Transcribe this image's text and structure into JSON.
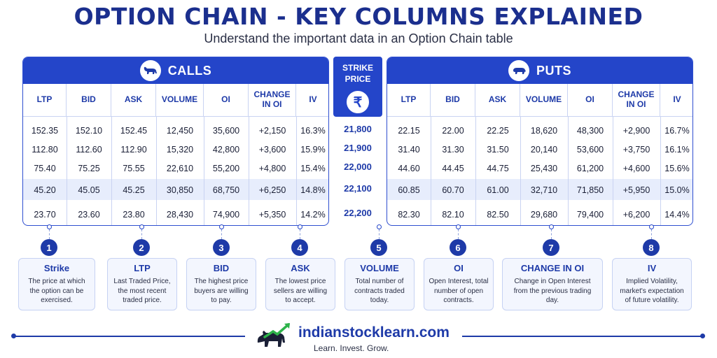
{
  "header": {
    "title": "OPTION CHAIN - KEY COLUMNS EXPLAINED",
    "subtitle": "Understand the important data in an Option Chain table"
  },
  "calls": {
    "label": "CALLS",
    "icon": "bull-icon",
    "columns": [
      "LTP",
      "BID",
      "ASK",
      "VOLUME",
      "OI",
      "CHANGE IN OI",
      "IV"
    ],
    "rows": [
      [
        "152.35",
        "152.10",
        "152.45",
        "12,450",
        "35,600",
        "+2,150",
        "16.3%"
      ],
      [
        "112.80",
        "112.60",
        "112.90",
        "15,320",
        "42,800",
        "+3,600",
        "15.9%"
      ],
      [
        "75.40",
        "75.25",
        "75.55",
        "22,610",
        "55,200",
        "+4,800",
        "15.4%"
      ],
      [
        "45.20",
        "45.05",
        "45.25",
        "30,850",
        "68,750",
        "+6,250",
        "14.8%"
      ],
      [
        "23.70",
        "23.60",
        "23.80",
        "28,430",
        "74,900",
        "+5,350",
        "14.2%"
      ]
    ]
  },
  "strike": {
    "label_line1": "STRIKE",
    "label_line2": "PRICE",
    "icon": "rupee-icon",
    "symbol": "₹",
    "values": [
      "21,800",
      "21,900",
      "22,000",
      "22,100",
      "22,200"
    ]
  },
  "puts": {
    "label": "PUTS",
    "icon": "bear-icon",
    "columns": [
      "LTP",
      "BID",
      "ASK",
      "VOLUME",
      "OI",
      "CHANGE IN OI",
      "IV"
    ],
    "rows": [
      [
        "22.15",
        "22.00",
        "22.25",
        "18,620",
        "48,300",
        "+2,900",
        "16.7%"
      ],
      [
        "31.40",
        "31.30",
        "31.50",
        "20,140",
        "53,600",
        "+3,750",
        "16.1%"
      ],
      [
        "44.60",
        "44.45",
        "44.75",
        "25,430",
        "61,200",
        "+4,600",
        "15.6%"
      ],
      [
        "60.85",
        "60.70",
        "61.00",
        "32,710",
        "71,850",
        "+5,950",
        "15.0%"
      ],
      [
        "82.30",
        "82.10",
        "82.50",
        "29,680",
        "79,400",
        "+6,200",
        "14.4%"
      ]
    ]
  },
  "highlighted_row": 3,
  "explanations": [
    {
      "num": "1",
      "title": "Strike",
      "desc": "The price at which the option can be exercised."
    },
    {
      "num": "2",
      "title": "LTP",
      "desc": "Last Traded Price, the most recent traded price."
    },
    {
      "num": "3",
      "title": "BID",
      "desc": "The highest price buyers are willing to pay."
    },
    {
      "num": "4",
      "title": "ASK",
      "desc": "The lowest price sellers are willing to accept."
    },
    {
      "num": "5",
      "title": "VOLUME",
      "desc": "Total number of contracts traded today."
    },
    {
      "num": "6",
      "title": "OI",
      "desc": "Open Interest, total number of open contracts."
    },
    {
      "num": "7",
      "title": "CHANGE IN OI",
      "desc": "Change in Open Interest from the previous trading day."
    },
    {
      "num": "8",
      "title": "IV",
      "desc": "Implied Volatility, market's expectation of future volatility."
    }
  ],
  "footer": {
    "brand": "indianstocklearn.com",
    "tagline": "Learn. Invest. Grow.",
    "logo_icon": "bull-with-arrow-logo"
  },
  "colors": {
    "primary": "#2445c9",
    "title": "#1b2f8e",
    "highlight_row": "#e7edfc",
    "card_bg": "#f3f6fe"
  }
}
